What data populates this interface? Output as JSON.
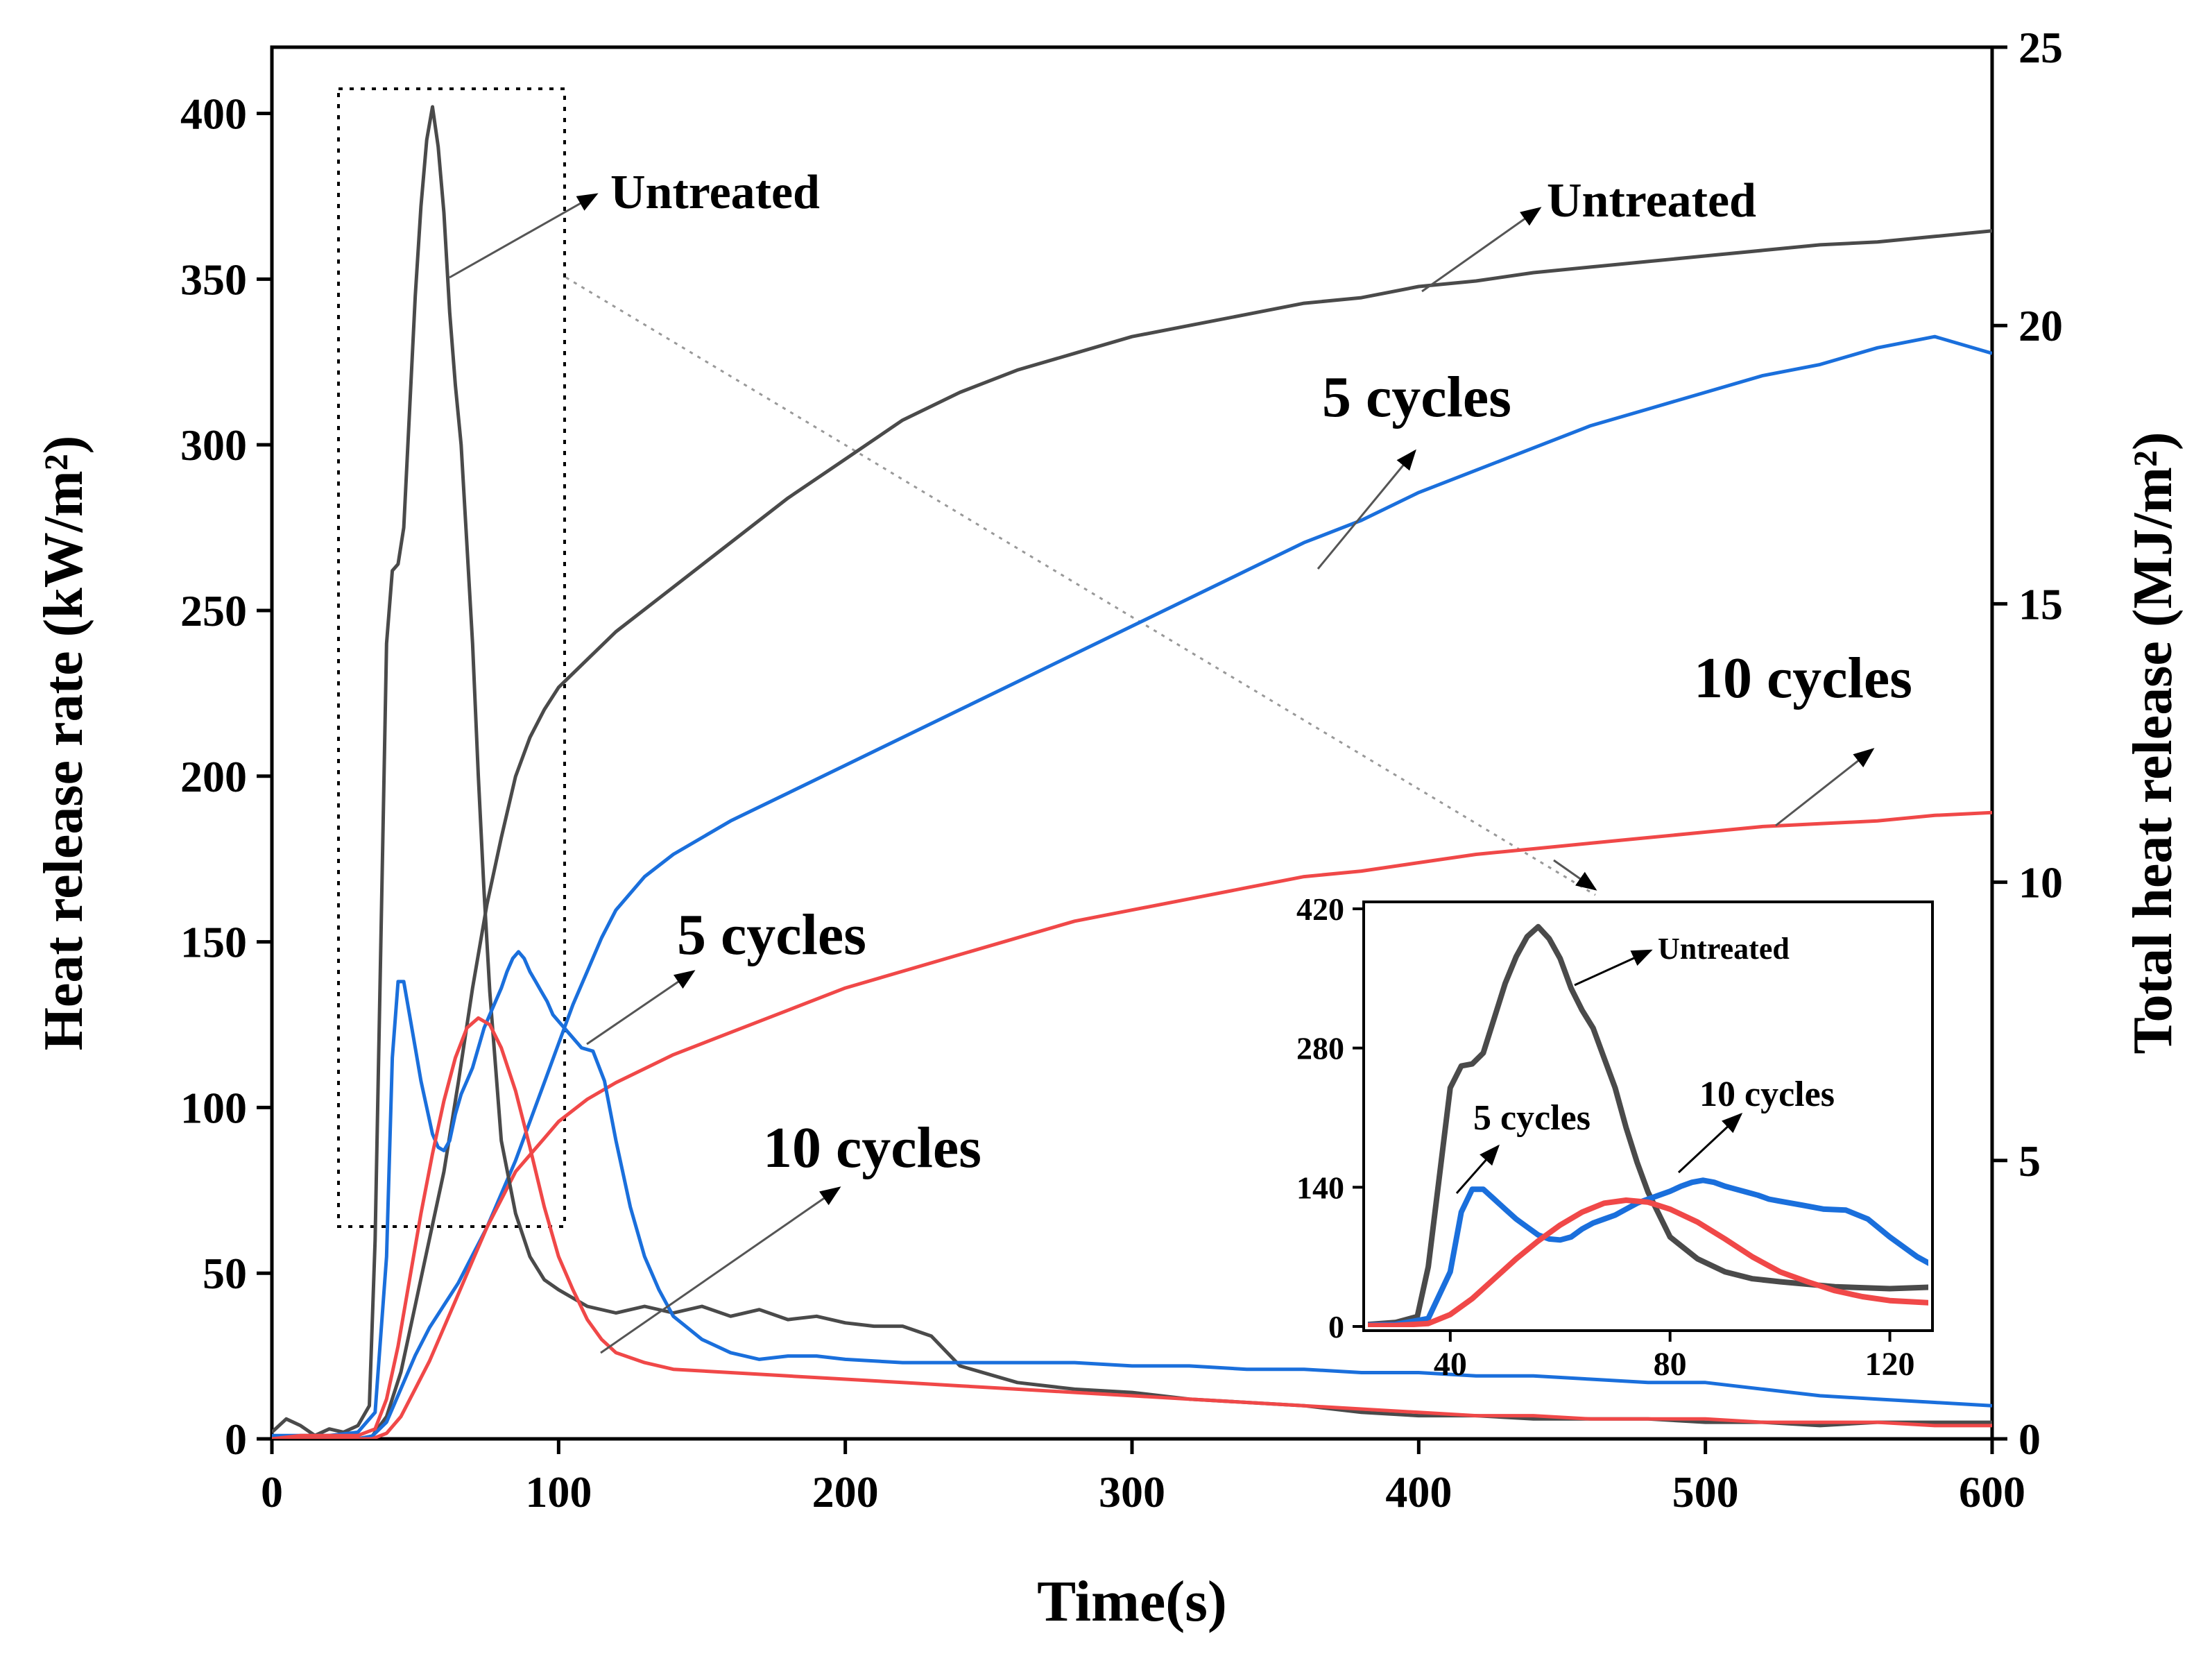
{
  "chart_data": {
    "type": "line",
    "xlabel": "Time(s)",
    "ylabel_left": "Heat release rate (kW/m²)",
    "ylabel_right": "Total heat release (MJ/m²)",
    "xlim": [
      0,
      600
    ],
    "ylim_left": [
      0,
      420
    ],
    "ylim_right": [
      0,
      25
    ],
    "x_ticks": [
      0,
      100,
      200,
      300,
      400,
      500,
      600
    ],
    "y_left_ticks": [
      0,
      50,
      100,
      150,
      200,
      250,
      300,
      350,
      400
    ],
    "y_right_ticks": [
      0,
      5,
      10,
      15,
      20,
      25
    ],
    "colors": {
      "untreated": "#4a4a4a",
      "cycles5": "#1a6fdc",
      "cycles10": "#f04848"
    },
    "hrr_series": [
      {
        "name": "Untreated",
        "color": "#4a4a4a",
        "points": [
          [
            0,
            2
          ],
          [
            5,
            6
          ],
          [
            10,
            4
          ],
          [
            15,
            1
          ],
          [
            20,
            3
          ],
          [
            25,
            2
          ],
          [
            30,
            4
          ],
          [
            34,
            10
          ],
          [
            36,
            60
          ],
          [
            38,
            150
          ],
          [
            40,
            240
          ],
          [
            42,
            262
          ],
          [
            44,
            264
          ],
          [
            46,
            275
          ],
          [
            48,
            310
          ],
          [
            50,
            345
          ],
          [
            52,
            372
          ],
          [
            54,
            392
          ],
          [
            56,
            402
          ],
          [
            58,
            390
          ],
          [
            60,
            370
          ],
          [
            62,
            340
          ],
          [
            64,
            318
          ],
          [
            66,
            300
          ],
          [
            68,
            270
          ],
          [
            70,
            240
          ],
          [
            72,
            200
          ],
          [
            74,
            165
          ],
          [
            76,
            135
          ],
          [
            80,
            90
          ],
          [
            85,
            68
          ],
          [
            90,
            55
          ],
          [
            95,
            48
          ],
          [
            100,
            45
          ],
          [
            110,
            40
          ],
          [
            120,
            38
          ],
          [
            130,
            40
          ],
          [
            140,
            38
          ],
          [
            150,
            40
          ],
          [
            160,
            37
          ],
          [
            170,
            39
          ],
          [
            180,
            36
          ],
          [
            190,
            37
          ],
          [
            200,
            35
          ],
          [
            210,
            34
          ],
          [
            220,
            34
          ],
          [
            230,
            31
          ],
          [
            240,
            22
          ],
          [
            260,
            17
          ],
          [
            280,
            15
          ],
          [
            300,
            14
          ],
          [
            320,
            12
          ],
          [
            340,
            11
          ],
          [
            360,
            10
          ],
          [
            380,
            8
          ],
          [
            400,
            7
          ],
          [
            420,
            7
          ],
          [
            440,
            6
          ],
          [
            460,
            6
          ],
          [
            480,
            6
          ],
          [
            500,
            5
          ],
          [
            520,
            5
          ],
          [
            540,
            4
          ],
          [
            560,
            5
          ],
          [
            580,
            5
          ],
          [
            600,
            5
          ]
        ]
      },
      {
        "name": "5 cycles",
        "color": "#1a6fdc",
        "points": [
          [
            0,
            1
          ],
          [
            10,
            1
          ],
          [
            20,
            1
          ],
          [
            30,
            2
          ],
          [
            36,
            8
          ],
          [
            40,
            55
          ],
          [
            42,
            115
          ],
          [
            44,
            138
          ],
          [
            46,
            138
          ],
          [
            48,
            128
          ],
          [
            50,
            118
          ],
          [
            52,
            108
          ],
          [
            54,
            100
          ],
          [
            56,
            92
          ],
          [
            58,
            88
          ],
          [
            60,
            87
          ],
          [
            62,
            90
          ],
          [
            64,
            98
          ],
          [
            66,
            104
          ],
          [
            68,
            108
          ],
          [
            70,
            112
          ],
          [
            72,
            118
          ],
          [
            74,
            124
          ],
          [
            76,
            128
          ],
          [
            78,
            132
          ],
          [
            80,
            136
          ],
          [
            82,
            141
          ],
          [
            84,
            145
          ],
          [
            86,
            147
          ],
          [
            88,
            145
          ],
          [
            90,
            141
          ],
          [
            92,
            138
          ],
          [
            94,
            135
          ],
          [
            96,
            132
          ],
          [
            98,
            128
          ],
          [
            100,
            126
          ],
          [
            104,
            122
          ],
          [
            108,
            118
          ],
          [
            112,
            117
          ],
          [
            116,
            108
          ],
          [
            120,
            90
          ],
          [
            125,
            70
          ],
          [
            130,
            55
          ],
          [
            135,
            45
          ],
          [
            140,
            37
          ],
          [
            150,
            30
          ],
          [
            160,
            26
          ],
          [
            170,
            24
          ],
          [
            180,
            25
          ],
          [
            190,
            25
          ],
          [
            200,
            24
          ],
          [
            220,
            23
          ],
          [
            240,
            23
          ],
          [
            260,
            23
          ],
          [
            280,
            23
          ],
          [
            300,
            22
          ],
          [
            320,
            22
          ],
          [
            340,
            21
          ],
          [
            360,
            21
          ],
          [
            380,
            20
          ],
          [
            400,
            20
          ],
          [
            420,
            19
          ],
          [
            440,
            19
          ],
          [
            460,
            18
          ],
          [
            480,
            17
          ],
          [
            500,
            17
          ],
          [
            520,
            15
          ],
          [
            540,
            13
          ],
          [
            560,
            12
          ],
          [
            580,
            11
          ],
          [
            600,
            10
          ]
        ]
      },
      {
        "name": "10 cycles",
        "color": "#f04848",
        "points": [
          [
            0,
            0
          ],
          [
            10,
            1
          ],
          [
            20,
            1
          ],
          [
            30,
            1
          ],
          [
            36,
            3
          ],
          [
            40,
            12
          ],
          [
            44,
            28
          ],
          [
            48,
            48
          ],
          [
            52,
            68
          ],
          [
            56,
            86
          ],
          [
            60,
            102
          ],
          [
            64,
            115
          ],
          [
            68,
            124
          ],
          [
            72,
            127
          ],
          [
            76,
            125
          ],
          [
            80,
            118
          ],
          [
            85,
            105
          ],
          [
            90,
            88
          ],
          [
            95,
            70
          ],
          [
            100,
            55
          ],
          [
            105,
            45
          ],
          [
            110,
            36
          ],
          [
            115,
            30
          ],
          [
            120,
            26
          ],
          [
            130,
            23
          ],
          [
            140,
            21
          ],
          [
            160,
            20
          ],
          [
            180,
            19
          ],
          [
            200,
            18
          ],
          [
            220,
            17
          ],
          [
            240,
            16
          ],
          [
            260,
            15
          ],
          [
            280,
            14
          ],
          [
            300,
            13
          ],
          [
            320,
            12
          ],
          [
            340,
            11
          ],
          [
            360,
            10
          ],
          [
            380,
            9
          ],
          [
            400,
            8
          ],
          [
            420,
            7
          ],
          [
            440,
            7
          ],
          [
            460,
            6
          ],
          [
            480,
            6
          ],
          [
            500,
            6
          ],
          [
            520,
            5
          ],
          [
            540,
            5
          ],
          [
            560,
            5
          ],
          [
            580,
            4
          ],
          [
            600,
            4
          ]
        ]
      }
    ],
    "thr_series": [
      {
        "name": "Untreated",
        "color": "#4a4a4a",
        "points": [
          [
            0,
            0
          ],
          [
            30,
            0
          ],
          [
            35,
            0.05
          ],
          [
            40,
            0.4
          ],
          [
            45,
            1.2
          ],
          [
            50,
            2.4
          ],
          [
            55,
            3.6
          ],
          [
            60,
            4.8
          ],
          [
            65,
            6.4
          ],
          [
            70,
            8.1
          ],
          [
            75,
            9.6
          ],
          [
            80,
            10.8
          ],
          [
            85,
            11.9
          ],
          [
            90,
            12.6
          ],
          [
            95,
            13.1
          ],
          [
            100,
            13.5
          ],
          [
            110,
            14.0
          ],
          [
            120,
            14.5
          ],
          [
            140,
            15.3
          ],
          [
            160,
            16.1
          ],
          [
            180,
            16.9
          ],
          [
            200,
            17.6
          ],
          [
            220,
            18.3
          ],
          [
            240,
            18.8
          ],
          [
            260,
            19.2
          ],
          [
            280,
            19.5
          ],
          [
            300,
            19.8
          ],
          [
            320,
            20.0
          ],
          [
            340,
            20.2
          ],
          [
            360,
            20.4
          ],
          [
            380,
            20.5
          ],
          [
            400,
            20.7
          ],
          [
            420,
            20.8
          ],
          [
            440,
            20.95
          ],
          [
            460,
            21.05
          ],
          [
            480,
            21.15
          ],
          [
            500,
            21.25
          ],
          [
            520,
            21.35
          ],
          [
            540,
            21.45
          ],
          [
            560,
            21.5
          ],
          [
            580,
            21.6
          ],
          [
            600,
            21.7
          ]
        ]
      },
      {
        "name": "5 cycles",
        "color": "#1a6fdc",
        "points": [
          [
            0,
            0
          ],
          [
            30,
            0
          ],
          [
            35,
            0.05
          ],
          [
            40,
            0.3
          ],
          [
            45,
            0.9
          ],
          [
            50,
            1.5
          ],
          [
            55,
            2.0
          ],
          [
            60,
            2.4
          ],
          [
            65,
            2.8
          ],
          [
            70,
            3.3
          ],
          [
            75,
            3.8
          ],
          [
            80,
            4.4
          ],
          [
            85,
            5.0
          ],
          [
            90,
            5.7
          ],
          [
            95,
            6.4
          ],
          [
            100,
            7.1
          ],
          [
            105,
            7.8
          ],
          [
            110,
            8.4
          ],
          [
            115,
            9.0
          ],
          [
            120,
            9.5
          ],
          [
            130,
            10.1
          ],
          [
            140,
            10.5
          ],
          [
            160,
            11.1
          ],
          [
            180,
            11.6
          ],
          [
            200,
            12.1
          ],
          [
            220,
            12.6
          ],
          [
            240,
            13.1
          ],
          [
            260,
            13.6
          ],
          [
            280,
            14.1
          ],
          [
            300,
            14.6
          ],
          [
            320,
            15.1
          ],
          [
            340,
            15.6
          ],
          [
            360,
            16.1
          ],
          [
            380,
            16.5
          ],
          [
            400,
            17.0
          ],
          [
            420,
            17.4
          ],
          [
            440,
            17.8
          ],
          [
            460,
            18.2
          ],
          [
            480,
            18.5
          ],
          [
            500,
            18.8
          ],
          [
            520,
            19.1
          ],
          [
            540,
            19.3
          ],
          [
            560,
            19.6
          ],
          [
            580,
            19.8
          ],
          [
            600,
            19.5
          ]
        ]
      },
      {
        "name": "10 cycles",
        "color": "#f04848",
        "points": [
          [
            0,
            0
          ],
          [
            35,
            0
          ],
          [
            40,
            0.1
          ],
          [
            45,
            0.4
          ],
          [
            50,
            0.9
          ],
          [
            55,
            1.4
          ],
          [
            60,
            2.0
          ],
          [
            65,
            2.6
          ],
          [
            70,
            3.2
          ],
          [
            75,
            3.8
          ],
          [
            80,
            4.3
          ],
          [
            85,
            4.8
          ],
          [
            90,
            5.1
          ],
          [
            95,
            5.4
          ],
          [
            100,
            5.7
          ],
          [
            110,
            6.1
          ],
          [
            120,
            6.4
          ],
          [
            140,
            6.9
          ],
          [
            160,
            7.3
          ],
          [
            180,
            7.7
          ],
          [
            200,
            8.1
          ],
          [
            220,
            8.4
          ],
          [
            240,
            8.7
          ],
          [
            260,
            9.0
          ],
          [
            280,
            9.3
          ],
          [
            300,
            9.5
          ],
          [
            320,
            9.7
          ],
          [
            340,
            9.9
          ],
          [
            360,
            10.1
          ],
          [
            380,
            10.2
          ],
          [
            400,
            10.35
          ],
          [
            420,
            10.5
          ],
          [
            440,
            10.6
          ],
          [
            460,
            10.7
          ],
          [
            480,
            10.8
          ],
          [
            500,
            10.9
          ],
          [
            520,
            11.0
          ],
          [
            540,
            11.05
          ],
          [
            560,
            11.1
          ],
          [
            580,
            11.2
          ],
          [
            600,
            11.25
          ]
        ]
      }
    ],
    "inset": {
      "xlim": [
        25,
        127
      ],
      "ylim": [
        0,
        420
      ],
      "x_ticks": [
        40,
        80,
        120
      ],
      "y_ticks": [
        0,
        140,
        280,
        420
      ],
      "labels": {
        "untreated": "Untreated",
        "cycles5": "5 cycles",
        "cycles10": "10 cycles"
      }
    },
    "annotations": {
      "hrr_untreated": "Untreated",
      "thr_untreated": "Untreated",
      "thr_5cycles": "5 cycles",
      "thr_10cycles": "10 cycles",
      "hrr_5cycles": "5 cycles",
      "hrr_10cycles": "10 cycles"
    }
  }
}
